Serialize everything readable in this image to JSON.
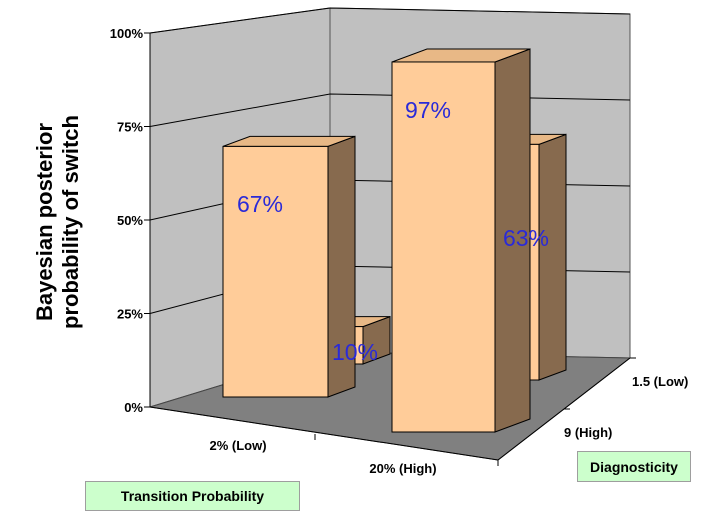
{
  "chart_data": {
    "type": "bar",
    "style": "3d-column",
    "ylabel": "Bayesian posterior probability of switch",
    "ylabel_lines": [
      "Bayesian posterior",
      "probability of switch"
    ],
    "y_ticks": [
      "0%",
      "25%",
      "50%",
      "75%",
      "100%"
    ],
    "ylim": [
      0,
      100
    ],
    "x_axis_title": "Transition Probability",
    "x_categories": [
      "2% (Low)",
      "20% (High)"
    ],
    "depth_axis_title": "Diagnosticity",
    "depth_categories": [
      "9 (High)",
      "1.5 (Low)"
    ],
    "bars": [
      {
        "transition": "2% (Low)",
        "diagnosticity": "1.5 (Low)",
        "value": 67,
        "label": "67%"
      },
      {
        "transition": "2% (Low)",
        "diagnosticity": "9 (High)",
        "value": 10,
        "label": "10%"
      },
      {
        "transition": "20% (High)",
        "diagnosticity": "1.5 (Low)",
        "value": 63,
        "label": "63%"
      },
      {
        "transition": "20% (High)",
        "diagnosticity": "9 (High)",
        "value": 97,
        "label": "97%"
      }
    ],
    "grid": true,
    "colors": {
      "bar_front": "#ffcc99",
      "bar_top": "#e8b886",
      "bar_side": "#876a4e",
      "wall": "#c0c0c0",
      "floor": "#808080",
      "label_text": "#2a2ad8"
    }
  }
}
